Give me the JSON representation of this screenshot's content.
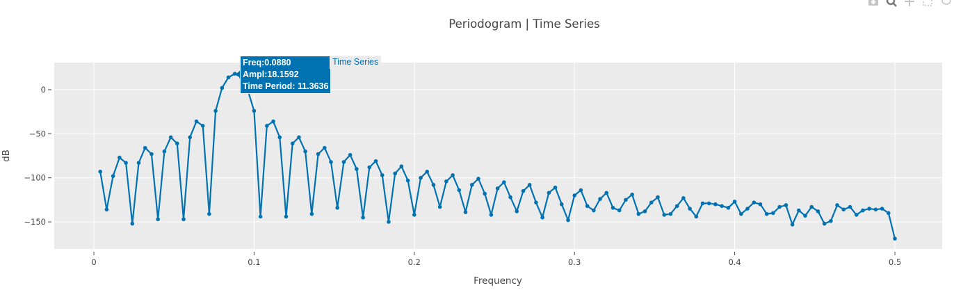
{
  "title": "Periodogram | Time Series",
  "colors": {
    "line": "#0072b2",
    "plot_bg": "#ebebeb",
    "grid": "#ffffff",
    "text": "#444444"
  },
  "modebar": [
    "camera-icon",
    "zoom-icon",
    "pan-icon",
    "box-select-icon",
    "lasso-select-icon"
  ],
  "tooltip": {
    "freq": "Freq:0.0880",
    "ampl": "Ampl:18.1592",
    "period": "Time Period: 11.3636",
    "series_name": "Time Series"
  },
  "chart_data": {
    "type": "line",
    "title": "Periodogram | Time Series",
    "xlabel": "Frequency",
    "ylabel": "dB",
    "xlim": [
      -0.025,
      0.525
    ],
    "ylim": [
      -181,
      31
    ],
    "xticks": [
      0,
      0.1,
      0.2,
      0.3,
      0.4,
      0.5
    ],
    "xtick_labels": [
      "0",
      "0.1",
      "0.2",
      "0.3",
      "0.4",
      "0.5"
    ],
    "yticks": [
      0,
      -50,
      -100,
      -150
    ],
    "ytick_labels": [
      "0",
      "−50",
      "−100",
      "−150"
    ],
    "grid": true,
    "legend": false,
    "series": [
      {
        "name": "Time Series",
        "x_start": 0.004,
        "x_step": 0.004,
        "values": [
          -93,
          -136,
          -98,
          -77,
          -83,
          -152,
          -83,
          -66,
          -73,
          -147,
          -70,
          -54,
          -61,
          -147,
          -54,
          -36,
          -41,
          -141,
          -24,
          2,
          14,
          18.16,
          14,
          0,
          -24,
          -144,
          -41,
          -36,
          -54,
          -144,
          -61,
          -54,
          -70,
          -141,
          -73,
          -66,
          -82,
          -134,
          -82,
          -74,
          -90,
          -145,
          -88,
          -81,
          -97,
          -150,
          -95,
          -87,
          -103,
          -142,
          -100,
          -93,
          -108,
          -133,
          -104,
          -97,
          -114,
          -139,
          -108,
          -101,
          -118,
          -142,
          -112,
          -105,
          -122,
          -138,
          -115,
          -108,
          -128,
          -145,
          -117,
          -111,
          -130,
          -148,
          -120,
          -114,
          -132,
          -137,
          -124,
          -117,
          -134,
          -137,
          -125,
          -119,
          -141,
          -138,
          -128,
          -122,
          -142,
          -141,
          -132,
          -123,
          -135,
          -144,
          -129,
          -129,
          -130,
          -132,
          -134,
          -127,
          -141,
          -135,
          -128,
          -130,
          -141,
          -140,
          -133,
          -131,
          -153,
          -137,
          -143,
          -133,
          -138,
          -152,
          -149,
          -131,
          -136,
          -133,
          -142,
          -137,
          -135,
          -136,
          -135,
          -140,
          -169
        ]
      }
    ],
    "annotations": [
      {
        "x": 0.088,
        "y": 18.1592,
        "text": "Freq:0.0880 / Ampl:18.1592 / Time Period: 11.3636"
      }
    ]
  }
}
